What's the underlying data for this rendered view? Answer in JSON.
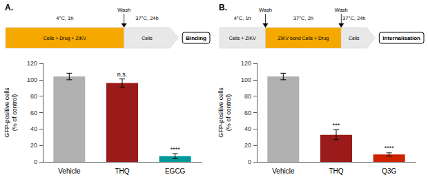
{
  "chart_data": [
    {
      "type": "bar",
      "title": "A.",
      "categories": [
        "Vehicle",
        "THQ",
        "EGCG"
      ],
      "values": [
        104,
        96,
        7
      ],
      "errors": [
        4,
        5,
        3
      ],
      "colors": [
        "#b0b0b0",
        "#9B1B1B",
        "#009999"
      ],
      "annotations": [
        {
          "category": "THQ",
          "text": "n.s."
        },
        {
          "category": "EGCG",
          "text": "****"
        }
      ],
      "ylabel": "GFP-positive cells\n(% of control)",
      "ylim": [
        0,
        120
      ],
      "yticks": [
        0,
        20,
        40,
        60,
        80,
        100,
        120
      ],
      "grid": false,
      "diagram": {
        "steps": [
          {
            "label": "Cells + Drug + ZIKV",
            "condition": "4°C, 1h",
            "color": "#F5A800"
          },
          {
            "wash": "Wash"
          },
          {
            "label": "Cells",
            "condition": "37°C, 24h",
            "color": "#e8e8e8"
          }
        ],
        "outcome": "Binding"
      }
    },
    {
      "type": "bar",
      "title": "B.",
      "categories": [
        "Vehicle",
        "THQ",
        "Q3G"
      ],
      "values": [
        104,
        33,
        9
      ],
      "errors": [
        4,
        6,
        2
      ],
      "colors": [
        "#b0b0b0",
        "#9B1B1B",
        "#CC2200"
      ],
      "annotations": [
        {
          "category": "THQ",
          "text": "***"
        },
        {
          "category": "Q3G",
          "text": "****"
        }
      ],
      "ylabel": "GFP-positive cells\n(% of control)",
      "ylim": [
        0,
        120
      ],
      "yticks": [
        0,
        20,
        40,
        60,
        80,
        100,
        120
      ],
      "grid": false,
      "diagram": {
        "steps": [
          {
            "label": "Cells + ZIKV",
            "condition": "4°C, 1h",
            "color": "#e8e8e8"
          },
          {
            "wash": "Wash"
          },
          {
            "label": "ZIKV bond Cells + Drug",
            "condition": "37°C, 2h",
            "color": "#F5A800"
          },
          {
            "wash": "Wash"
          },
          {
            "label": "Cells",
            "condition": "37°C, 24h",
            "color": "#e8e8e8"
          }
        ],
        "outcome": "Internalisation"
      }
    }
  ]
}
